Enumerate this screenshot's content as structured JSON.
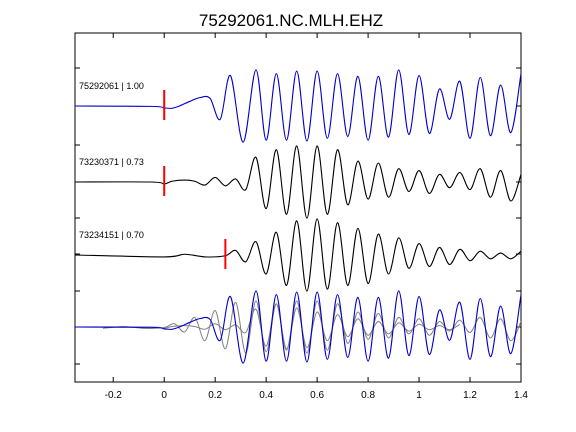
{
  "figure": {
    "title": "75292061.NC.MLH.EHZ"
  },
  "chart_data": {
    "type": "line",
    "title": "75292061.NC.MLH.EHZ",
    "xlabel": "",
    "ylabel": "",
    "xlim": [
      -0.35,
      1.4
    ],
    "x_ticks": [
      "-0.2",
      "0",
      "0.2",
      "0.4",
      "0.6",
      "0.8",
      "1",
      "1.2",
      "1.4"
    ],
    "x_tick_values": [
      -0.2,
      0,
      0.2,
      0.4,
      0.6,
      0.8,
      1,
      1.2,
      1.4
    ],
    "grid": false,
    "colors": {
      "primary": "#0000cc",
      "secondary": "#000000",
      "overlay": "#808080",
      "pick": "#ff0000"
    },
    "series": [
      {
        "name": "75292061 | 1.00",
        "color": "#0000cc",
        "pick_time": 0.0,
        "x": [
          -0.35,
          -0.05,
          0.0,
          0.03,
          0.06,
          0.1,
          0.14,
          0.18,
          0.22,
          0.26,
          0.31,
          0.36,
          0.4,
          0.44,
          0.48,
          0.52,
          0.56,
          0.6,
          0.64,
          0.68,
          0.72,
          0.76,
          0.8,
          0.84,
          0.88,
          0.92,
          0.96,
          1.0,
          1.04,
          1.08,
          1.12,
          1.16,
          1.2,
          1.24,
          1.28,
          1.32,
          1.36,
          1.4
        ],
        "y": [
          0.0,
          -0.01,
          -0.05,
          -0.06,
          0.0,
          0.12,
          0.22,
          0.2,
          -0.35,
          0.8,
          -0.95,
          0.95,
          -0.9,
          0.85,
          -0.9,
          0.92,
          -0.92,
          0.92,
          -0.85,
          0.85,
          -0.8,
          0.78,
          -0.9,
          0.78,
          -0.82,
          0.95,
          -0.75,
          0.8,
          -0.72,
          0.45,
          -0.35,
          0.65,
          -0.85,
          0.75,
          -0.78,
          0.55,
          -0.7,
          0.85
        ]
      },
      {
        "name": "73230371 | 0.73",
        "color": "#000000",
        "pick_time": 0.0,
        "x": [
          -0.35,
          -0.05,
          0.0,
          0.03,
          0.08,
          0.12,
          0.16,
          0.2,
          0.24,
          0.28,
          0.32,
          0.36,
          0.4,
          0.44,
          0.48,
          0.52,
          0.56,
          0.6,
          0.64,
          0.68,
          0.72,
          0.76,
          0.8,
          0.84,
          0.88,
          0.92,
          0.96,
          1.0,
          1.04,
          1.08,
          1.12,
          1.16,
          1.2,
          1.24,
          1.28,
          1.32,
          1.36,
          1.4
        ],
        "y": [
          0.0,
          0.0,
          -0.05,
          0.02,
          0.05,
          0.02,
          -0.08,
          0.12,
          -0.1,
          0.08,
          -0.2,
          0.65,
          -0.7,
          0.85,
          -0.85,
          0.95,
          -0.95,
          0.95,
          -0.85,
          0.85,
          -0.6,
          0.55,
          -0.45,
          0.5,
          -0.4,
          0.35,
          -0.25,
          0.3,
          -0.3,
          0.2,
          -0.15,
          0.25,
          -0.2,
          0.35,
          -0.4,
          0.3,
          -0.5,
          0.2
        ]
      },
      {
        "name": "73234151 | 0.70",
        "color": "#000000",
        "pick_time": 0.24,
        "x": [
          -0.35,
          0.0,
          0.08,
          0.16,
          0.24,
          0.28,
          0.32,
          0.36,
          0.4,
          0.44,
          0.48,
          0.52,
          0.56,
          0.6,
          0.64,
          0.68,
          0.72,
          0.76,
          0.8,
          0.84,
          0.88,
          0.92,
          0.96,
          1.0,
          1.04,
          1.08,
          1.12,
          1.16,
          1.2,
          1.24,
          1.28,
          1.32,
          1.36,
          1.4
        ],
        "y": [
          0.0,
          -0.05,
          0.02,
          -0.05,
          -0.02,
          0.12,
          -0.18,
          0.35,
          -0.5,
          0.6,
          -0.8,
          0.9,
          -0.95,
          0.95,
          -0.9,
          0.85,
          -0.8,
          0.7,
          -0.75,
          0.55,
          -0.5,
          0.45,
          -0.35,
          0.3,
          -0.3,
          0.2,
          -0.25,
          0.15,
          -0.15,
          0.1,
          -0.1,
          0.05,
          -0.1,
          0.1
        ]
      }
    ],
    "stack_series": [
      "75292061 | 1.00",
      "73230371 | 0.73",
      "73234151 | 0.70"
    ]
  }
}
